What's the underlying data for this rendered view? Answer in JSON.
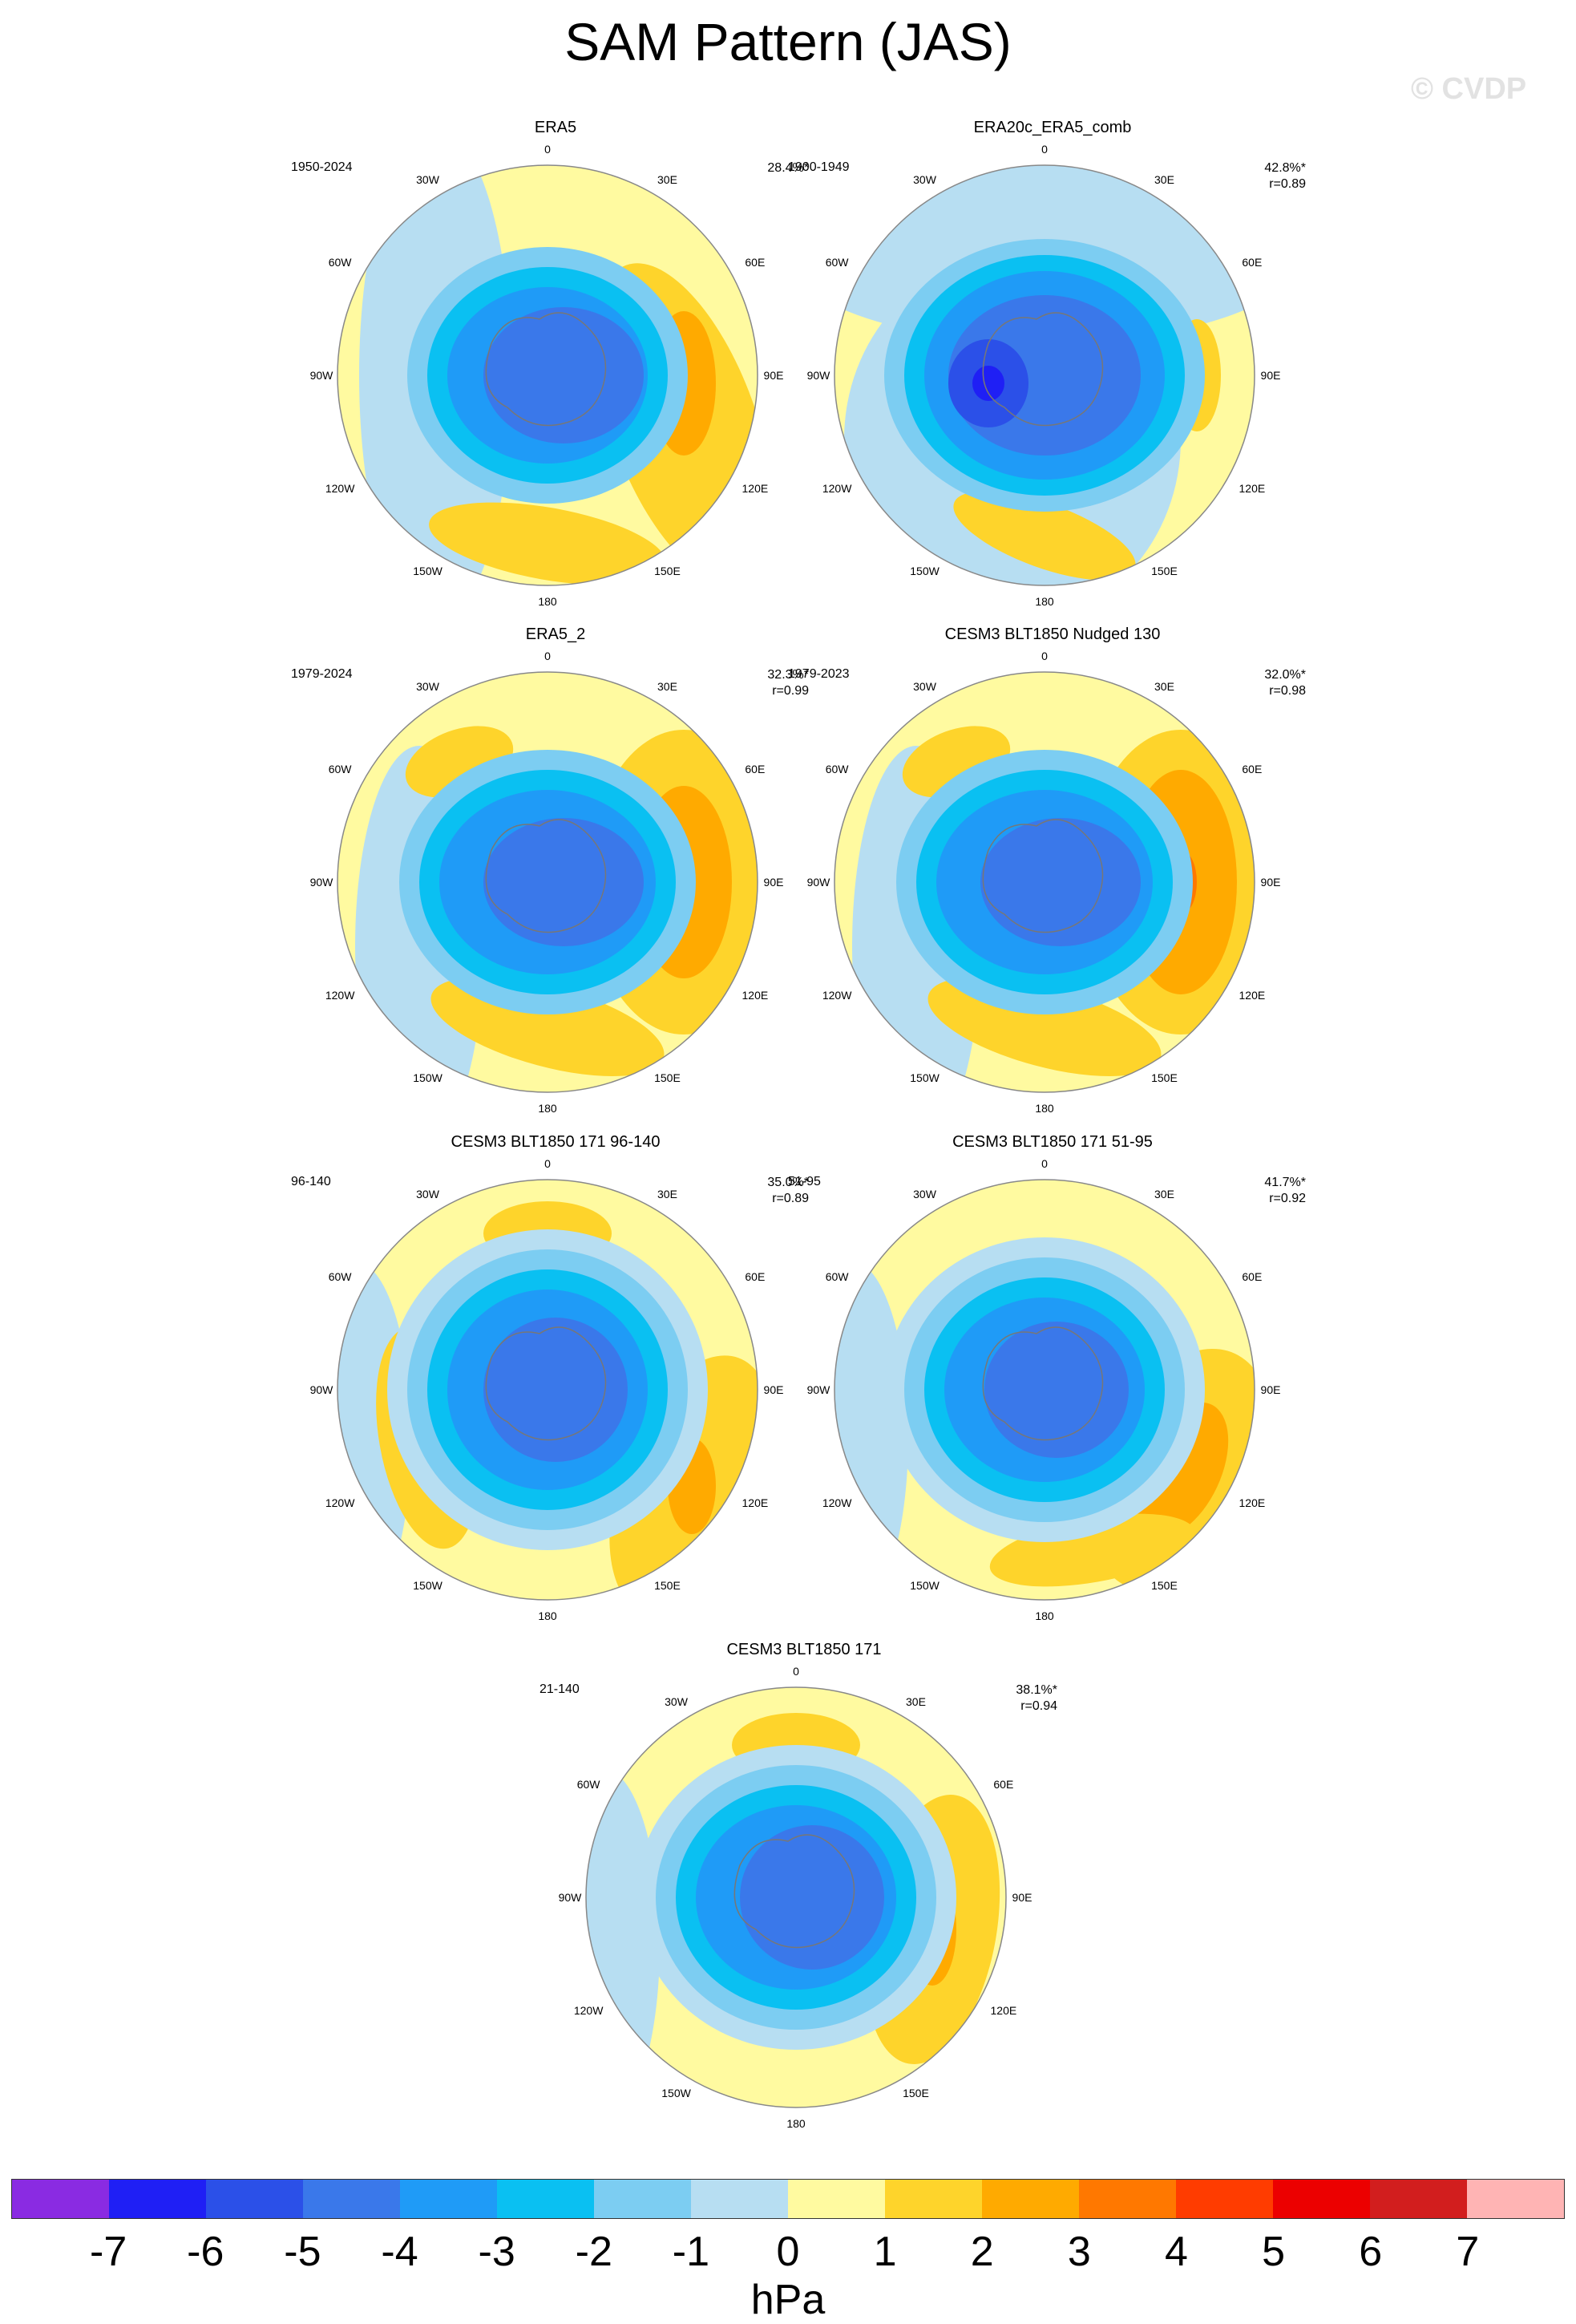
{
  "title": "SAM Pattern (JAS)",
  "watermark": "© CVDP",
  "units": "hPa",
  "colors": {
    "levels": [
      "#8a2be2",
      "#1f1ff5",
      "#2b50e8",
      "#3a78ea",
      "#1f9bf7",
      "#0ac0f2",
      "#7ccdf2",
      "#b7def2",
      "#fffaa0",
      "#fed42b",
      "#ffaa00",
      "#ff7800",
      "#ff3c00",
      "#ec0000",
      "#d21e1e",
      "#ffb4b4"
    ],
    "land": "#777777",
    "border": "#888888"
  },
  "colorbar_ticks": [
    "-7",
    "-6",
    "-5",
    "-4",
    "-3",
    "-2",
    "-1",
    "0",
    "1",
    "2",
    "3",
    "4",
    "5",
    "6",
    "7"
  ],
  "lon_labels": [
    "0",
    "30E",
    "60E",
    "90E",
    "120E",
    "150E",
    "180",
    "150W",
    "120W",
    "90W",
    "60W",
    "30W"
  ],
  "panels": [
    {
      "name": "ERA5",
      "period": "1950-2024",
      "pct": "28.4%*",
      "r": ""
    },
    {
      "name": "ERA20c_ERA5_comb",
      "period": "1900-1949",
      "pct": "42.8%*",
      "r": "r=0.89"
    },
    {
      "name": "ERA5_2",
      "period": "1979-2024",
      "pct": "32.3%*",
      "r": "r=0.99"
    },
    {
      "name": "CESM3 BLT1850 Nudged 130",
      "period": "1979-2023",
      "pct": "32.0%*",
      "r": "r=0.98"
    },
    {
      "name": "CESM3 BLT1850 171 96-140",
      "period": "96-140",
      "pct": "35.0%*",
      "r": "r=0.89"
    },
    {
      "name": "CESM3 BLT1850 171 51-95",
      "period": "51-95",
      "pct": "41.7%*",
      "r": "r=0.92"
    },
    {
      "name": "CESM3 BLT1850 171",
      "period": "21-140",
      "pct": "38.1%*",
      "r": "r=0.94"
    }
  ]
}
